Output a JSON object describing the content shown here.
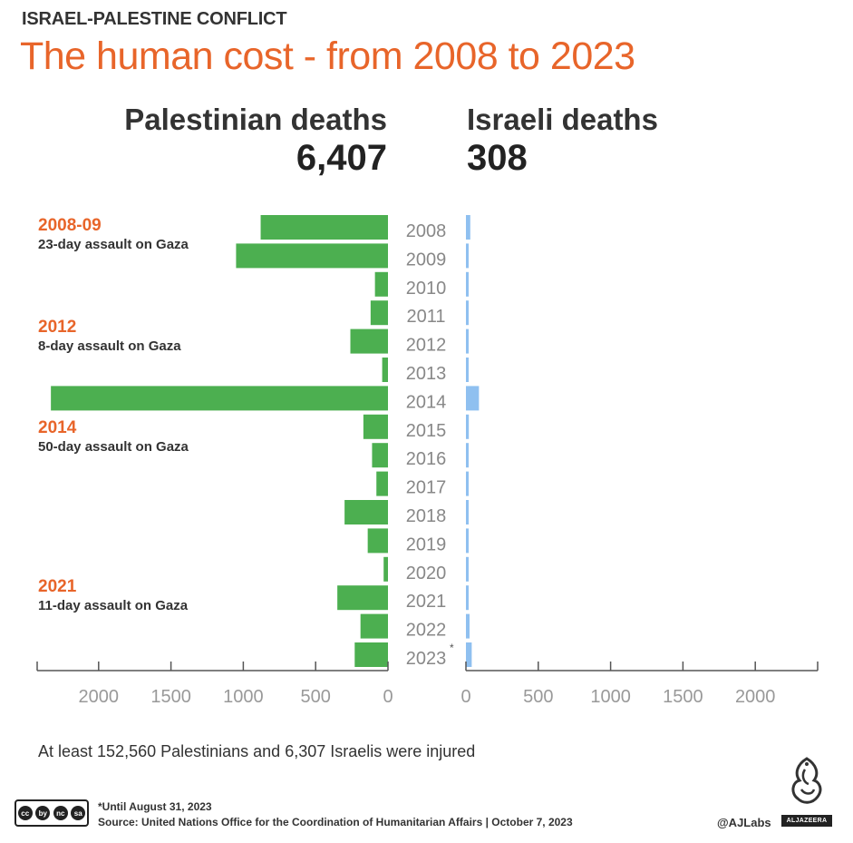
{
  "header": {
    "kicker": "ISRAEL-PALESTINE CONFLICT",
    "title": "The human cost - from 2008 to 2023"
  },
  "totals": {
    "palestinian_label": "Palestinian deaths",
    "palestinian_total": "6,407",
    "israeli_label": "Israeli deaths",
    "israeli_total": "308"
  },
  "events": [
    {
      "year": "2008-09",
      "desc": "23-day assault on Gaza"
    },
    {
      "year": "2012",
      "desc": "8-day assault on Gaza"
    },
    {
      "year": "2014",
      "desc": "50-day assault on Gaza"
    },
    {
      "year": "2021",
      "desc": "11-day assault on Gaza"
    }
  ],
  "chart_data": {
    "type": "bar",
    "orientation": "horizontal-butterfly",
    "categories": [
      "2008",
      "2009",
      "2010",
      "2011",
      "2012",
      "2013",
      "2014",
      "2015",
      "2016",
      "2017",
      "2018",
      "2019",
      "2020",
      "2021",
      "2022",
      "2023"
    ],
    "category_suffix": {
      "2023": "*"
    },
    "series": [
      {
        "name": "Palestinian deaths",
        "color": "#4caf50",
        "values": [
          880,
          1050,
          90,
          120,
          260,
          40,
          2330,
          170,
          110,
          80,
          300,
          140,
          30,
          350,
          190,
          230
        ]
      },
      {
        "name": "Israeli deaths",
        "color": "#8fc0f0",
        "values": [
          30,
          5,
          5,
          15,
          5,
          5,
          90,
          20,
          5,
          15,
          5,
          5,
          5,
          5,
          25,
          40
        ]
      }
    ],
    "left_ticks": [
      "2000",
      "1500",
      "1000",
      "500",
      "0"
    ],
    "right_ticks": [
      "0",
      "500",
      "1000",
      "1500",
      "2000"
    ],
    "xlim": [
      0,
      2500
    ]
  },
  "footer": {
    "note": "At least 152,560 Palestinians and 6,307 Israelis were injured",
    "footnote": "*Until August 31, 2023",
    "source": "Source: United Nations Office for the Coordination of Humanitarian Affairs  |  October 7, 2023",
    "handle": "@AJLabs",
    "logo_text": "ALJAZEERA",
    "license_marks": [
      "cc",
      "by",
      "nc",
      "sa"
    ]
  }
}
